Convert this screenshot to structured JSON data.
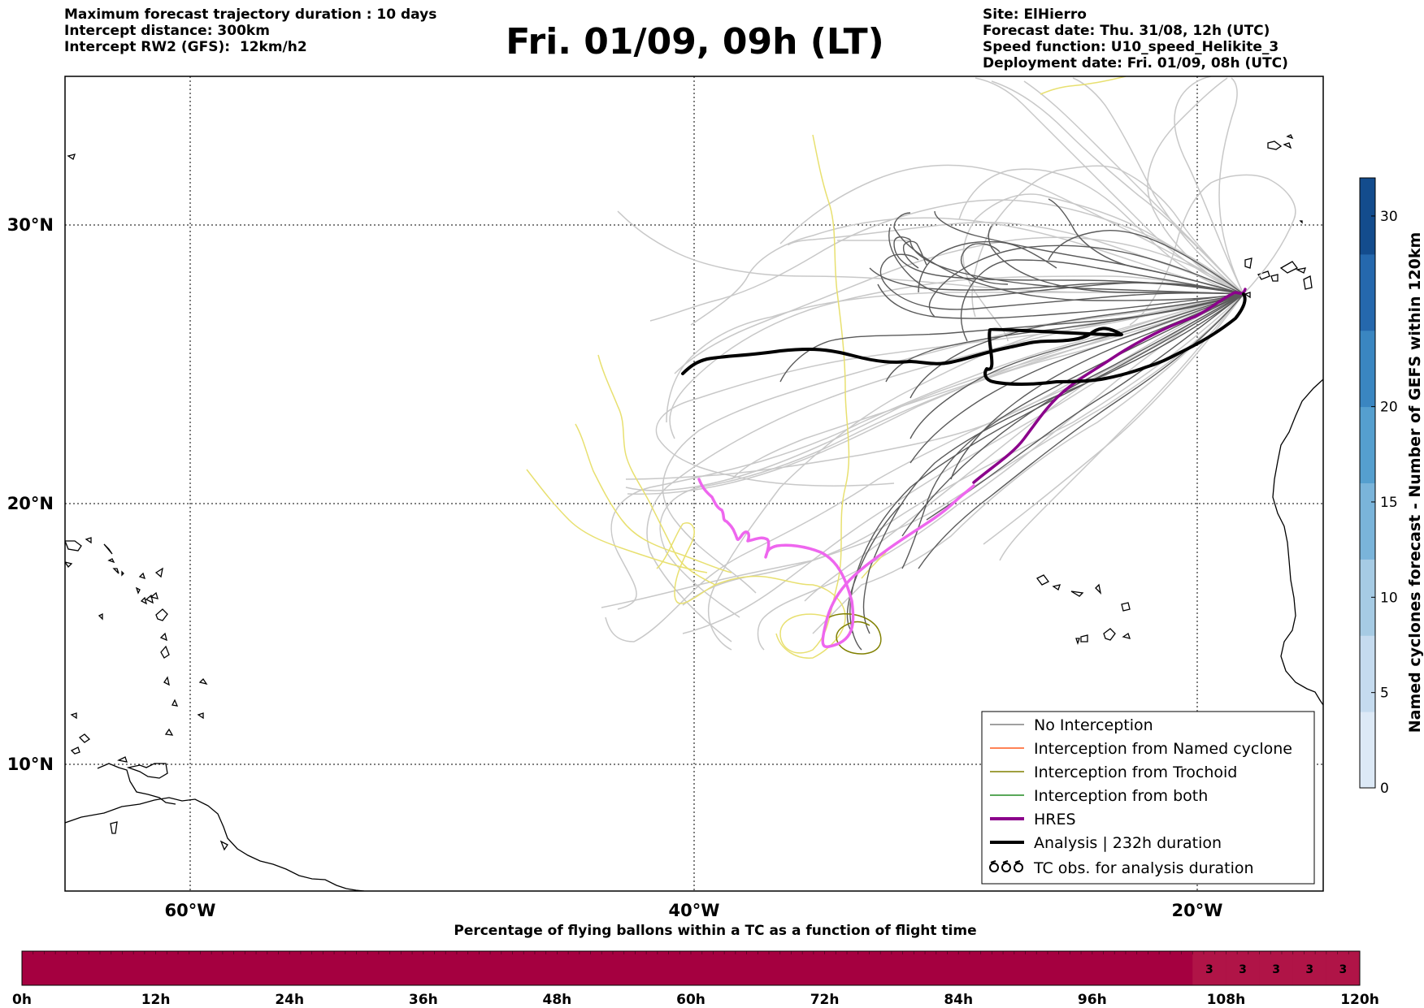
{
  "header": {
    "left_lines": [
      "Maximum forecast trajectory duration : 10 days",
      "Intercept distance: 300km",
      "Intercept RW2 (GFS):  12km/h2"
    ],
    "title": "Fri. 01/09, 09h (LT)",
    "right_lines": [
      "Site: ElHierro",
      "Forecast date: Thu. 31/08, 12h (UTC)",
      "Speed function: U10_speed_Helikite_3",
      "Deployment date: Fri. 01/09, 08h (UTC)"
    ]
  },
  "map": {
    "lat_labels": [
      "30°N",
      "20°N",
      "10°N"
    ],
    "lon_labels": [
      "60°W",
      "40°W",
      "20°W"
    ],
    "colors": {
      "gefs_light": "#c8c8c8",
      "gefs_dark": "#5a5a5a",
      "trochoid": "#808000",
      "yellow_track": "#e8e070",
      "hres": "#8b008b",
      "hres_tc": "#ee66ee",
      "analysis": "#000000"
    }
  },
  "legend": {
    "items": [
      {
        "label": "No Interception",
        "color": "#808080",
        "style": "thin"
      },
      {
        "label": "Interception from Named cyclone",
        "color": "#ff5a1f",
        "style": "thin"
      },
      {
        "label": "Interception from Trochoid",
        "color": "#808000",
        "style": "thin"
      },
      {
        "label": "Interception from both",
        "color": "#228b22",
        "style": "thin"
      },
      {
        "label": "HRES",
        "color": "#8b008b",
        "style": "thick"
      },
      {
        "label": "Analysis | 232h duration",
        "color": "#000000",
        "style": "thick"
      },
      {
        "label": "TC obs. for analysis duration",
        "color": "#000000",
        "style": "symbol"
      }
    ]
  },
  "colorbar": {
    "label": "Named cyclones forecast - Number of GEFS within 120km",
    "ticks": [
      "0",
      "5",
      "10",
      "15",
      "20",
      "30"
    ],
    "range": [
      0,
      32
    ],
    "colors": [
      "#dce9f6",
      "#c5dbef",
      "#a6cbe4",
      "#7ab4da",
      "#559fcf",
      "#3a86c1",
      "#2568ad",
      "#134c8d"
    ]
  },
  "flight_bar": {
    "title": "Percentage of flying ballons within a TC as a function of flight time",
    "ticks": [
      "0h",
      "12h",
      "24h",
      "36h",
      "48h",
      "60h",
      "72h",
      "84h",
      "96h",
      "108h",
      "120h"
    ],
    "base_color": "#a50040",
    "highlight_color": "#b01447",
    "highlight_start_hours": 105,
    "cell_values": [
      "3",
      "3",
      "3",
      "3",
      "3"
    ]
  }
}
